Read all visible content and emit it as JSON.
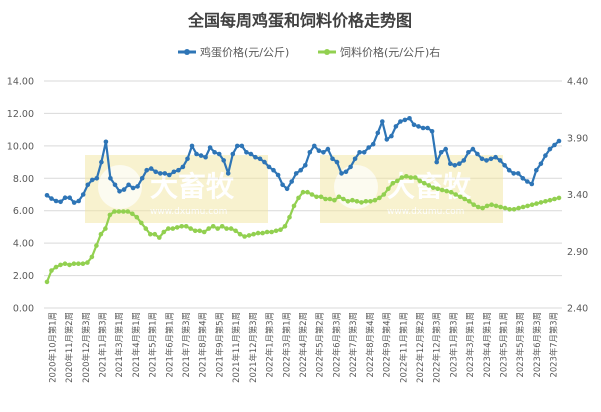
{
  "chart_data": {
    "type": "line",
    "title": "全国每周鸡蛋和饲料价格走势图",
    "watermark": {
      "brand": "大畜牧",
      "url": "www.dxumu.com"
    },
    "axes": {
      "left": {
        "ylim": [
          0,
          14
        ],
        "ticks": [
          "0.00",
          "2.00",
          "4.00",
          "6.00",
          "8.00",
          "10.00",
          "12.00",
          "14.00"
        ]
      },
      "right": {
        "ylim": [
          2.4,
          4.4
        ],
        "ticks": [
          "2.40",
          "2.90",
          "3.40",
          "3.90",
          "4.40"
        ]
      }
    },
    "grid": true,
    "legend_position": "top",
    "x_ticks": [
      "2020年10月第1周",
      "2020年11月第2周",
      "2020年12月第3周",
      "2021年1月第3周",
      "2021年3月第1周",
      "2021年4月第1周",
      "2021年5月第1周",
      "2021年6月第1周",
      "2021年7月第3周",
      "2021年8月第4周",
      "2021年9月第5周",
      "2021年11月第1周",
      "2021年12月第3周",
      "2022年1月第3周",
      "2022年3月第1周",
      "2022年4月第2周",
      "2022年5月第2周",
      "2022年6月第3周",
      "2022年7月第3周",
      "2022年8月第4周",
      "2022年9月第4周",
      "2022年11月第1周",
      "2022年12月第2周",
      "2022年12月第3周",
      "2023年1月第3周",
      "2023年3月第1周",
      "2023年4月第1周",
      "2023年5月第1周",
      "2023年5月第3周",
      "2023年6月第3周",
      "2023年7月第3周"
    ],
    "series": [
      {
        "name": "鸡蛋价格(元/公斤)",
        "axis": "left",
        "color": "#2e75b6",
        "values": [
          6.95,
          6.75,
          6.6,
          6.55,
          6.8,
          6.8,
          6.5,
          6.6,
          7.0,
          7.6,
          7.9,
          8.0,
          9.0,
          10.25,
          8.0,
          7.6,
          7.2,
          7.3,
          7.6,
          7.4,
          7.5,
          8.0,
          8.5,
          8.6,
          8.4,
          8.3,
          8.3,
          8.2,
          8.4,
          8.5,
          8.7,
          9.2,
          10.0,
          9.5,
          9.4,
          9.3,
          9.9,
          9.6,
          9.5,
          9.1,
          8.3,
          9.5,
          10.0,
          10.0,
          9.6,
          9.5,
          9.3,
          9.2,
          9.0,
          8.7,
          8.5,
          8.2,
          7.6,
          7.35,
          7.8,
          8.3,
          8.5,
          8.8,
          9.6,
          10.0,
          9.7,
          9.6,
          9.8,
          9.2,
          9.0,
          8.3,
          8.4,
          8.7,
          9.2,
          9.6,
          9.6,
          9.9,
          10.1,
          10.8,
          11.5,
          10.4,
          10.6,
          11.2,
          11.5,
          11.6,
          11.7,
          11.3,
          11.2,
          11.1,
          11.1,
          10.9,
          9.0,
          9.6,
          9.8,
          8.9,
          8.8,
          8.9,
          9.1,
          9.6,
          9.8,
          9.5,
          9.2,
          9.1,
          9.2,
          9.3,
          9.1,
          8.8,
          8.5,
          8.3,
          8.3,
          8.0,
          7.8,
          7.65,
          8.5,
          8.9,
          9.4,
          9.8,
          10.05,
          10.3
        ]
      },
      {
        "name": "饲料价格(元/公斤)右",
        "axis": "right",
        "color": "#92d050",
        "values": [
          2.63,
          2.73,
          2.76,
          2.78,
          2.79,
          2.78,
          2.79,
          2.79,
          2.79,
          2.8,
          2.85,
          2.95,
          3.05,
          3.1,
          3.22,
          3.25,
          3.25,
          3.25,
          3.25,
          3.23,
          3.2,
          3.15,
          3.1,
          3.05,
          3.05,
          3.02,
          3.07,
          3.1,
          3.1,
          3.11,
          3.12,
          3.12,
          3.1,
          3.08,
          3.08,
          3.07,
          3.1,
          3.12,
          3.1,
          3.12,
          3.1,
          3.1,
          3.08,
          3.05,
          3.03,
          3.04,
          3.05,
          3.06,
          3.06,
          3.07,
          3.07,
          3.08,
          3.09,
          3.12,
          3.2,
          3.3,
          3.37,
          3.42,
          3.42,
          3.4,
          3.38,
          3.38,
          3.36,
          3.36,
          3.35,
          3.38,
          3.36,
          3.34,
          3.35,
          3.34,
          3.33,
          3.34,
          3.34,
          3.35,
          3.37,
          3.4,
          3.45,
          3.5,
          3.52,
          3.55,
          3.56,
          3.55,
          3.55,
          3.52,
          3.5,
          3.48,
          3.46,
          3.45,
          3.44,
          3.43,
          3.42,
          3.4,
          3.38,
          3.36,
          3.34,
          3.31,
          3.29,
          3.28,
          3.3,
          3.31,
          3.3,
          3.29,
          3.28,
          3.27,
          3.27,
          3.28,
          3.29,
          3.3,
          3.31,
          3.32,
          3.33,
          3.34,
          3.35,
          3.36,
          3.37
        ]
      }
    ]
  }
}
